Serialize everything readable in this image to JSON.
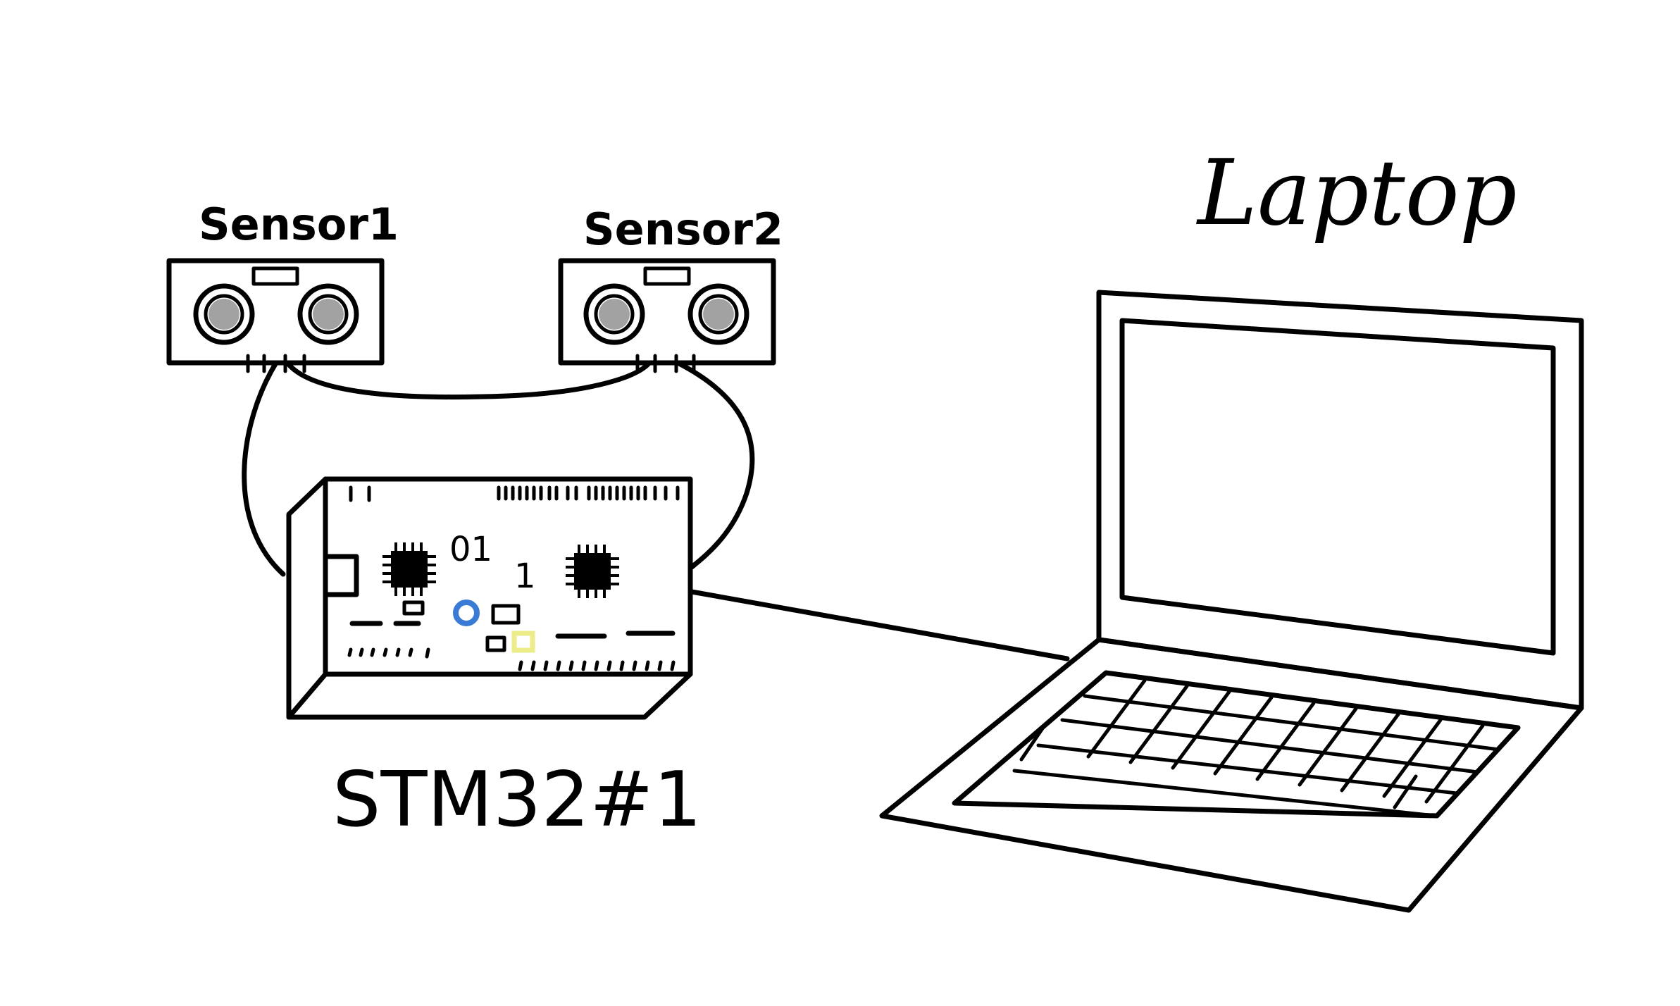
{
  "labels": {
    "sensor1": "Sensor1",
    "sensor2": "Sensor2",
    "board": "STM32#1",
    "laptop": "Laptop"
  },
  "board_markings": {
    "text_a": "01",
    "text_b": "1"
  },
  "colors": {
    "ink": "#000000",
    "background": "#ffffff",
    "led_blue": "#3a7bd5",
    "led_yellow": "#ecec8a"
  }
}
